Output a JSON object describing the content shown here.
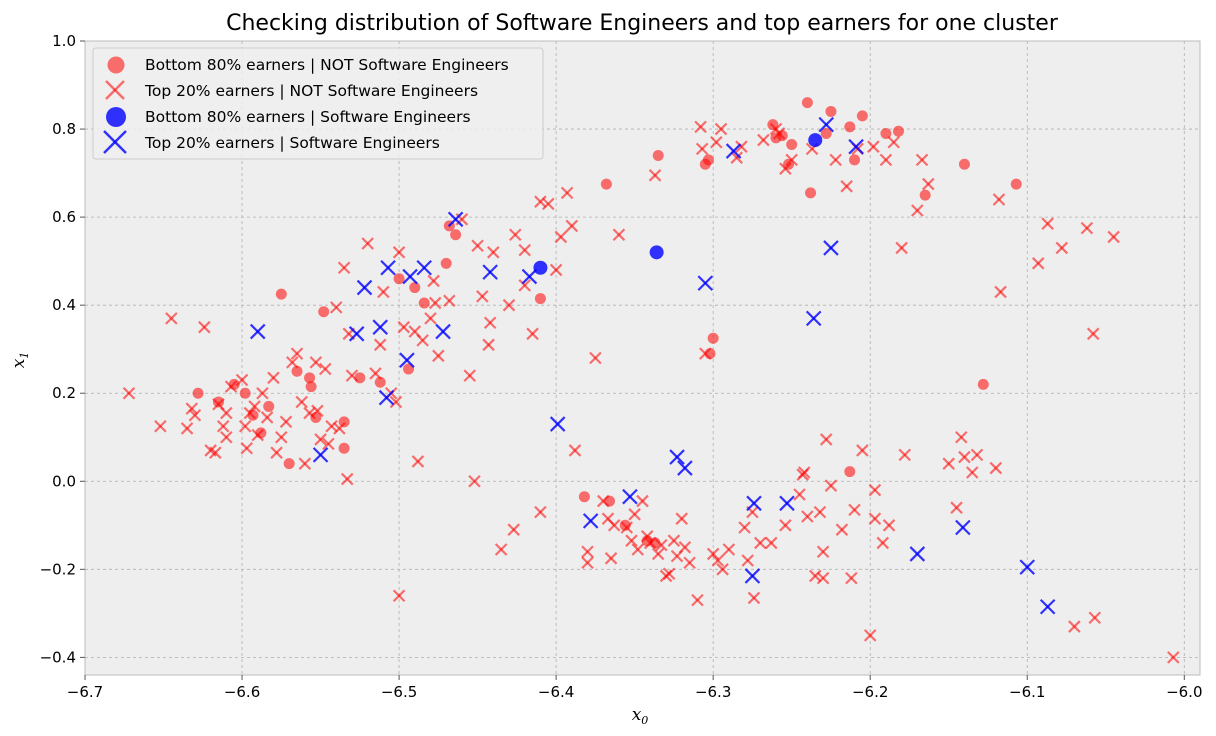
{
  "chart_data": {
    "type": "scatter",
    "title": "Checking distribution of Software Engineers and top earners for one cluster",
    "xlabel": "x",
    "xlabel_sub": "0",
    "ylabel": "x",
    "ylabel_sub": "1",
    "xlim": [
      -6.7,
      -5.99
    ],
    "ylim": [
      -0.44,
      1.0
    ],
    "xticks": [
      -6.7,
      -6.6,
      -6.5,
      -6.4,
      -6.3,
      -6.2,
      -6.1,
      -6.0
    ],
    "xtick_labels": [
      "−6.7",
      "−6.6",
      "−6.5",
      "−6.4",
      "−6.3",
      "−6.2",
      "−6.1",
      "−6.0"
    ],
    "yticks": [
      -0.4,
      -0.2,
      0.0,
      0.2,
      0.4,
      0.6,
      0.8,
      1.0
    ],
    "ytick_labels": [
      "−0.4",
      "−0.2",
      "0.0",
      "0.2",
      "0.4",
      "0.6",
      "0.8",
      "1.0"
    ],
    "grid": true,
    "legend_position": "top-left",
    "colors": {
      "red": "#ff0000",
      "blue": "#0000ff",
      "background": "#eeeeee",
      "grid": "#b0b0b0"
    },
    "series": [
      {
        "name": "Bottom 80% earners | NOT Software Engineers",
        "marker": "circle",
        "color": "#ff0000",
        "points": [
          [
            -6.628,
            0.2
          ],
          [
            -6.615,
            0.18
          ],
          [
            -6.605,
            0.22
          ],
          [
            -6.598,
            0.2
          ],
          [
            -6.593,
            0.15
          ],
          [
            -6.588,
            0.11
          ],
          [
            -6.583,
            0.17
          ],
          [
            -6.575,
            0.425
          ],
          [
            -6.57,
            0.04
          ],
          [
            -6.565,
            0.25
          ],
          [
            -6.557,
            0.235
          ],
          [
            -6.556,
            0.215
          ],
          [
            -6.553,
            0.145
          ],
          [
            -6.548,
            0.385
          ],
          [
            -6.535,
            0.135
          ],
          [
            -6.535,
            0.075
          ],
          [
            -6.525,
            0.235
          ],
          [
            -6.512,
            0.225
          ],
          [
            -6.5,
            0.46
          ],
          [
            -6.494,
            0.255
          ],
          [
            -6.49,
            0.44
          ],
          [
            -6.484,
            0.405
          ],
          [
            -6.47,
            0.495
          ],
          [
            -6.468,
            0.58
          ],
          [
            -6.464,
            0.56
          ],
          [
            -6.41,
            0.415
          ],
          [
            -6.382,
            -0.035
          ],
          [
            -6.368,
            0.675
          ],
          [
            -6.366,
            -0.045
          ],
          [
            -6.356,
            -0.1
          ],
          [
            -6.342,
            -0.135
          ],
          [
            -6.337,
            -0.14
          ],
          [
            -6.335,
            0.74
          ],
          [
            -6.305,
            0.72
          ],
          [
            -6.302,
            0.29
          ],
          [
            -6.3,
            0.325
          ],
          [
            -6.303,
            0.73
          ],
          [
            -6.262,
            0.81
          ],
          [
            -6.26,
            0.78
          ],
          [
            -6.256,
            0.785
          ],
          [
            -6.252,
            0.72
          ],
          [
            -6.25,
            0.765
          ],
          [
            -6.24,
            0.86
          ],
          [
            -6.238,
            0.655
          ],
          [
            -6.228,
            0.79
          ],
          [
            -6.225,
            0.84
          ],
          [
            -6.213,
            0.805
          ],
          [
            -6.21,
            0.73
          ],
          [
            -6.205,
            0.83
          ],
          [
            -6.19,
            0.79
          ],
          [
            -6.182,
            0.795
          ],
          [
            -6.165,
            0.65
          ],
          [
            -6.14,
            0.72
          ],
          [
            -6.128,
            0.22
          ],
          [
            -6.107,
            0.675
          ],
          [
            -6.213,
            0.022
          ]
        ]
      },
      {
        "name": "Top 20% earners | NOT Software Engineers",
        "marker": "x",
        "color": "#ff0000",
        "points": [
          [
            -6.672,
            0.2
          ],
          [
            -6.652,
            0.125
          ],
          [
            -6.645,
            0.37
          ],
          [
            -6.635,
            0.12
          ],
          [
            -6.632,
            0.165
          ],
          [
            -6.63,
            0.15
          ],
          [
            -6.624,
            0.35
          ],
          [
            -6.62,
            0.07
          ],
          [
            -6.617,
            0.065
          ],
          [
            -6.615,
            0.175
          ],
          [
            -6.612,
            0.125
          ],
          [
            -6.61,
            0.1
          ],
          [
            -6.61,
            0.155
          ],
          [
            -6.607,
            0.215
          ],
          [
            -6.6,
            0.23
          ],
          [
            -6.598,
            0.125
          ],
          [
            -6.597,
            0.075
          ],
          [
            -6.595,
            0.155
          ],
          [
            -6.592,
            0.17
          ],
          [
            -6.59,
            0.105
          ],
          [
            -6.587,
            0.2
          ],
          [
            -6.584,
            0.145
          ],
          [
            -6.58,
            0.235
          ],
          [
            -6.578,
            0.065
          ],
          [
            -6.575,
            0.1
          ],
          [
            -6.572,
            0.135
          ],
          [
            -6.568,
            0.27
          ],
          [
            -6.565,
            0.29
          ],
          [
            -6.562,
            0.18
          ],
          [
            -6.56,
            0.04
          ],
          [
            -6.557,
            0.155
          ],
          [
            -6.553,
            0.27
          ],
          [
            -6.552,
            0.16
          ],
          [
            -6.55,
            0.095
          ],
          [
            -6.547,
            0.255
          ],
          [
            -6.545,
            0.085
          ],
          [
            -6.543,
            0.125
          ],
          [
            -6.54,
            0.395
          ],
          [
            -6.538,
            0.12
          ],
          [
            -6.535,
            0.485
          ],
          [
            -6.533,
            0.005
          ],
          [
            -6.532,
            0.335
          ],
          [
            -6.53,
            0.24
          ],
          [
            -6.52,
            0.54
          ],
          [
            -6.515,
            0.245
          ],
          [
            -6.512,
            0.31
          ],
          [
            -6.51,
            0.43
          ],
          [
            -6.505,
            0.2
          ],
          [
            -6.502,
            0.18
          ],
          [
            -6.5,
            0.52
          ],
          [
            -6.497,
            0.35
          ],
          [
            -6.49,
            0.34
          ],
          [
            -6.488,
            0.045
          ],
          [
            -6.485,
            0.32
          ],
          [
            -6.48,
            0.37
          ],
          [
            -6.478,
            0.455
          ],
          [
            -6.477,
            0.405
          ],
          [
            -6.475,
            0.285
          ],
          [
            -6.468,
            0.41
          ],
          [
            -6.46,
            0.595
          ],
          [
            -6.455,
            0.24
          ],
          [
            -6.452,
            0.0
          ],
          [
            -6.45,
            0.535
          ],
          [
            -6.447,
            0.42
          ],
          [
            -6.443,
            0.31
          ],
          [
            -6.442,
            0.36
          ],
          [
            -6.44,
            0.52
          ],
          [
            -6.435,
            -0.155
          ],
          [
            -6.43,
            0.4
          ],
          [
            -6.427,
            -0.11
          ],
          [
            -6.426,
            0.56
          ],
          [
            -6.42,
            0.525
          ],
          [
            -6.42,
            0.445
          ],
          [
            -6.415,
            0.335
          ],
          [
            -6.41,
            0.635
          ],
          [
            -6.41,
            -0.07
          ],
          [
            -6.405,
            0.63
          ],
          [
            -6.4,
            0.48
          ],
          [
            -6.397,
            0.555
          ],
          [
            -6.393,
            0.655
          ],
          [
            -6.39,
            0.58
          ],
          [
            -6.388,
            0.07
          ],
          [
            -6.38,
            -0.16
          ],
          [
            -6.38,
            -0.185
          ],
          [
            -6.375,
            0.28
          ],
          [
            -6.37,
            -0.045
          ],
          [
            -6.367,
            -0.085
          ],
          [
            -6.365,
            -0.175
          ],
          [
            -6.363,
            -0.1
          ],
          [
            -6.36,
            0.56
          ],
          [
            -6.355,
            -0.105
          ],
          [
            -6.352,
            -0.135
          ],
          [
            -6.35,
            -0.075
          ],
          [
            -6.348,
            -0.155
          ],
          [
            -6.345,
            -0.045
          ],
          [
            -6.342,
            -0.125
          ],
          [
            -6.34,
            -0.14
          ],
          [
            -6.337,
            0.695
          ],
          [
            -6.335,
            -0.165
          ],
          [
            -6.333,
            -0.145
          ],
          [
            -6.33,
            -0.215
          ],
          [
            -6.328,
            -0.21
          ],
          [
            -6.325,
            -0.135
          ],
          [
            -6.323,
            -0.17
          ],
          [
            -6.32,
            -0.085
          ],
          [
            -6.318,
            -0.15
          ],
          [
            -6.315,
            -0.185
          ],
          [
            -6.31,
            -0.27
          ],
          [
            -6.308,
            0.805
          ],
          [
            -6.307,
            0.755
          ],
          [
            -6.305,
            0.29
          ],
          [
            -6.3,
            -0.165
          ],
          [
            -6.298,
            0.77
          ],
          [
            -6.297,
            -0.18
          ],
          [
            -6.295,
            0.8
          ],
          [
            -6.294,
            -0.2
          ],
          [
            -6.29,
            -0.155
          ],
          [
            -6.285,
            0.735
          ],
          [
            -6.282,
            0.76
          ],
          [
            -6.28,
            -0.105
          ],
          [
            -6.278,
            -0.18
          ],
          [
            -6.275,
            -0.07
          ],
          [
            -6.274,
            -0.265
          ],
          [
            -6.27,
            -0.14
          ],
          [
            -6.268,
            0.775
          ],
          [
            -6.263,
            -0.14
          ],
          [
            -6.26,
            0.8
          ],
          [
            -6.258,
            0.79
          ],
          [
            -6.254,
            0.71
          ],
          [
            -6.254,
            -0.1
          ],
          [
            -6.25,
            0.73
          ],
          [
            -6.245,
            -0.03
          ],
          [
            -6.243,
            0.015
          ],
          [
            -6.242,
            0.02
          ],
          [
            -6.24,
            -0.08
          ],
          [
            -6.237,
            0.755
          ],
          [
            -6.235,
            -0.215
          ],
          [
            -6.232,
            -0.07
          ],
          [
            -6.23,
            -0.22
          ],
          [
            -6.23,
            -0.16
          ],
          [
            -6.228,
            0.095
          ],
          [
            -6.225,
            -0.01
          ],
          [
            -6.222,
            0.73
          ],
          [
            -6.218,
            -0.11
          ],
          [
            -6.215,
            0.67
          ],
          [
            -6.212,
            -0.22
          ],
          [
            -6.21,
            -0.065
          ],
          [
            -6.208,
            0.755
          ],
          [
            -6.205,
            0.07
          ],
          [
            -6.2,
            -0.35
          ],
          [
            -6.198,
            0.76
          ],
          [
            -6.197,
            -0.085
          ],
          [
            -6.197,
            -0.02
          ],
          [
            -6.192,
            -0.14
          ],
          [
            -6.19,
            0.73
          ],
          [
            -6.188,
            -0.1
          ],
          [
            -6.185,
            0.77
          ],
          [
            -6.18,
            0.53
          ],
          [
            -6.178,
            0.06
          ],
          [
            -6.17,
            0.615
          ],
          [
            -6.167,
            0.73
          ],
          [
            -6.163,
            0.675
          ],
          [
            -6.15,
            0.04
          ],
          [
            -6.145,
            -0.06
          ],
          [
            -6.142,
            0.1
          ],
          [
            -6.14,
            0.055
          ],
          [
            -6.135,
            0.02
          ],
          [
            -6.132,
            0.06
          ],
          [
            -6.12,
            0.03
          ],
          [
            -6.118,
            0.64
          ],
          [
            -6.117,
            0.43
          ],
          [
            -6.093,
            0.495
          ],
          [
            -6.087,
            0.585
          ],
          [
            -6.078,
            0.53
          ],
          [
            -6.07,
            -0.33
          ],
          [
            -6.062,
            0.575
          ],
          [
            -6.058,
            0.335
          ],
          [
            -6.057,
            -0.31
          ],
          [
            -6.045,
            0.555
          ],
          [
            -6.007,
            -0.4
          ],
          [
            -6.5,
            -0.26
          ]
        ]
      },
      {
        "name": "Bottom 80% earners | Software Engineers",
        "marker": "circle",
        "color": "#0000ff",
        "points": [
          [
            -6.41,
            0.485
          ],
          [
            -6.336,
            0.52
          ],
          [
            -6.235,
            0.775
          ]
        ]
      },
      {
        "name": "Top 20% earners | Software Engineers",
        "marker": "x",
        "color": "#0000ff",
        "points": [
          [
            -6.59,
            0.34
          ],
          [
            -6.55,
            0.06
          ],
          [
            -6.527,
            0.335
          ],
          [
            -6.522,
            0.44
          ],
          [
            -6.512,
            0.35
          ],
          [
            -6.508,
            0.19
          ],
          [
            -6.507,
            0.485
          ],
          [
            -6.495,
            0.275
          ],
          [
            -6.493,
            0.465
          ],
          [
            -6.484,
            0.485
          ],
          [
            -6.472,
            0.34
          ],
          [
            -6.464,
            0.595
          ],
          [
            -6.442,
            0.475
          ],
          [
            -6.417,
            0.465
          ],
          [
            -6.399,
            0.13
          ],
          [
            -6.378,
            -0.09
          ],
          [
            -6.353,
            -0.035
          ],
          [
            -6.323,
            0.055
          ],
          [
            -6.318,
            0.03
          ],
          [
            -6.305,
            0.45
          ],
          [
            -6.287,
            0.75
          ],
          [
            -6.275,
            -0.215
          ],
          [
            -6.274,
            -0.05
          ],
          [
            -6.253,
            -0.05
          ],
          [
            -6.236,
            0.37
          ],
          [
            -6.228,
            0.81
          ],
          [
            -6.225,
            0.53
          ],
          [
            -6.209,
            0.76
          ],
          [
            -6.17,
            -0.165
          ],
          [
            -6.141,
            -0.105
          ],
          [
            -6.1,
            -0.195
          ],
          [
            -6.087,
            -0.285
          ]
        ]
      }
    ]
  }
}
